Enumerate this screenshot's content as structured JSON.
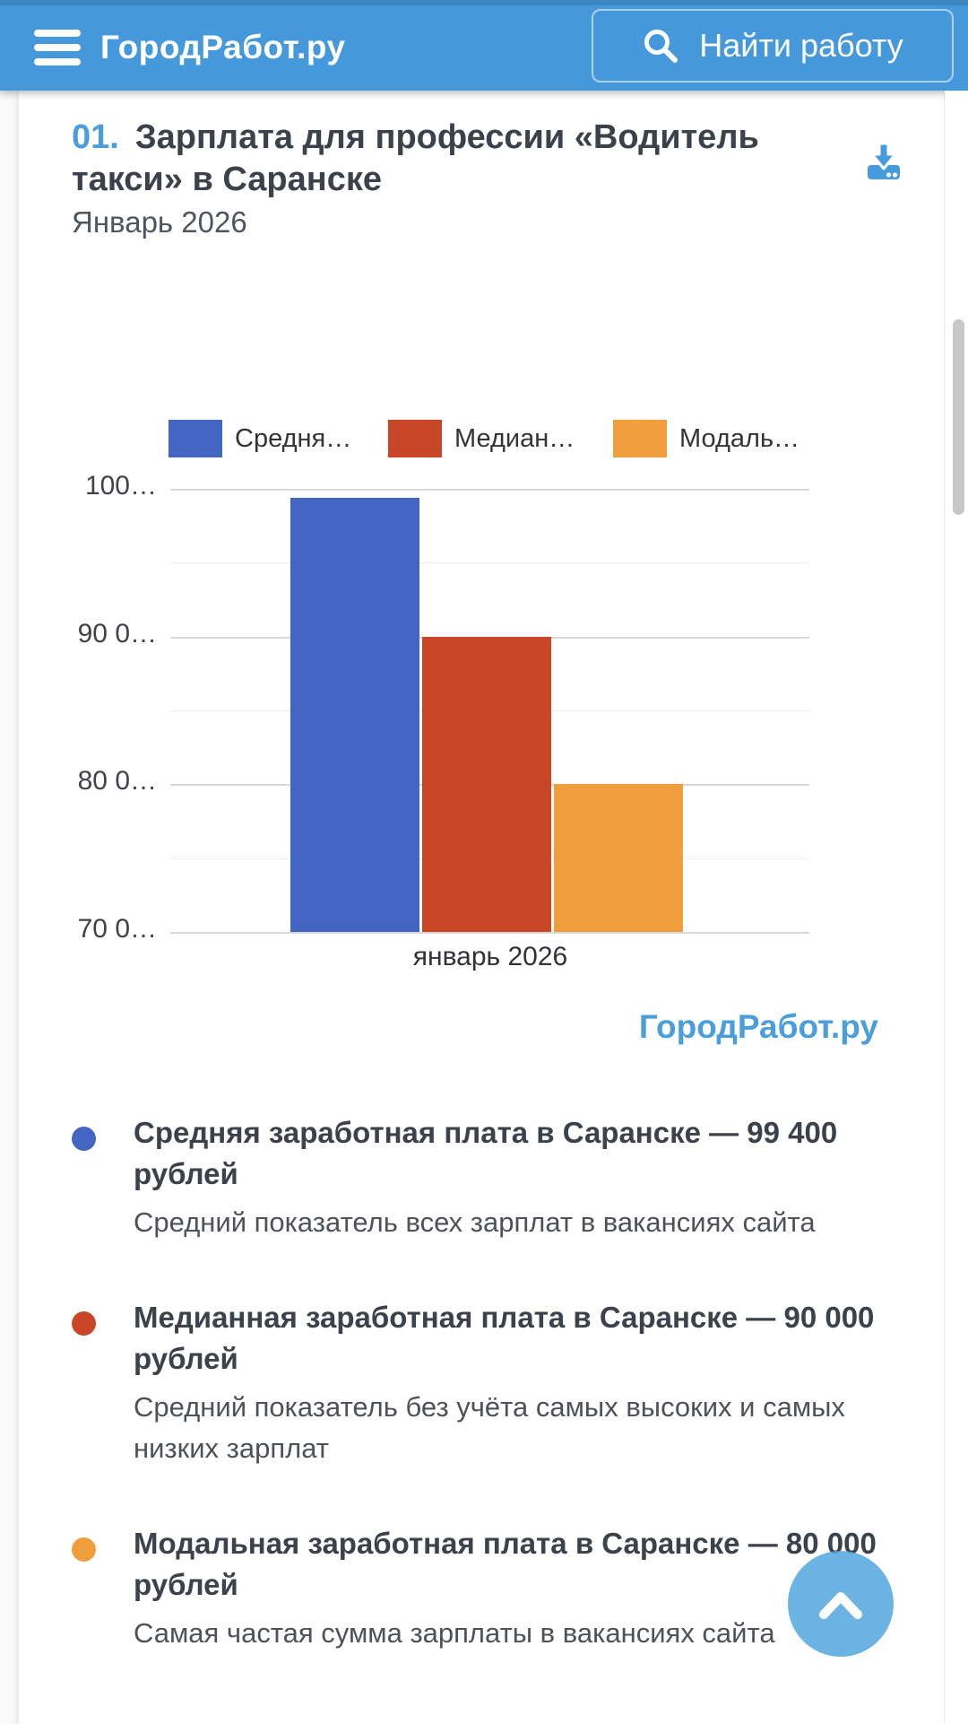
{
  "header": {
    "logo": "ГородРабот.ру",
    "search_button": "Найти работу"
  },
  "section": {
    "number": "01.",
    "title": "Зарплата для профессии «Водитель такси» в Саранске",
    "subtitle": "Январь 2026"
  },
  "chart_data": {
    "type": "bar",
    "categories": [
      "январь 2026"
    ],
    "series": [
      {
        "name": "Средняя зарплата",
        "legend_label": "Средня…",
        "color": "#4266c2",
        "values": [
          99400
        ]
      },
      {
        "name": "Медианная зарплата",
        "legend_label": "Медиан…",
        "color": "#c94727",
        "values": [
          90000
        ]
      },
      {
        "name": "Модальная зарплата",
        "legend_label": "Модаль…",
        "color": "#f09e3d",
        "values": [
          80000
        ]
      }
    ],
    "ylim": [
      70000,
      100000
    ],
    "ytick_step": 10000,
    "ytick_labels": [
      "100…",
      "90 0…",
      "80 0…",
      "70 0…"
    ],
    "grid": true,
    "legend_position": "top",
    "watermark": "ГородРабот.ру"
  },
  "descriptions": [
    {
      "color": "#4266c2",
      "title": "Средняя заработная плата в Саранске — 99 400 рублей",
      "text": "Средний показатель всех зарплат в вакансиях сайта"
    },
    {
      "color": "#c94727",
      "title": "Медианная заработная плата в Саранске — 90 000 рублей",
      "text": "Средний показатель без учёта самых высоких и самых низких зарплат"
    },
    {
      "color": "#f09e3d",
      "title": "Модальная заработная плата в Саранске — 80 000 рублей",
      "text": "Самая частая сумма зарплаты в вакансиях сайта"
    }
  ],
  "colors": {
    "brand_blue": "#4a9edb",
    "header_bg": "#4599da",
    "header_strip": "#3a86c2",
    "title_ink": "#3b424c",
    "muted_ink": "#4d5258",
    "grid_major": "#d9d9d9",
    "grid_minor": "#eeeeee",
    "scrollbar": "#c7c7c7"
  }
}
